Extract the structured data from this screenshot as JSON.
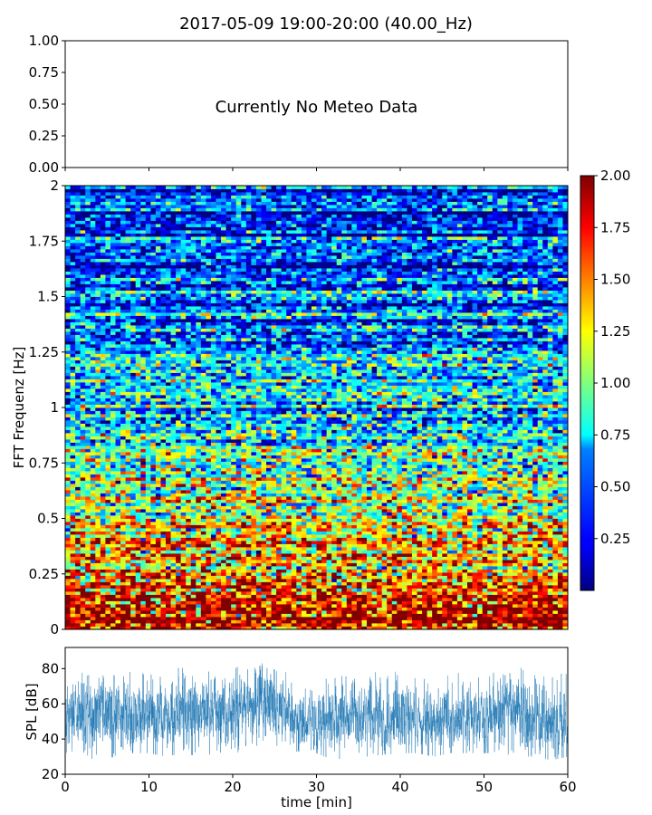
{
  "title": "2017-05-09 19:00-20:00 (40.00_Hz)",
  "meteo_message": "Currently No Meteo Data",
  "chart_data": [
    {
      "type": "line",
      "panel": "meteo",
      "ylim": [
        0.0,
        1.0
      ],
      "yticks": [
        "0.00",
        "0.25",
        "0.50",
        "0.75",
        "1.00"
      ],
      "series": []
    },
    {
      "type": "heatmap",
      "panel": "spectrogram",
      "ylabel": "FFT Frequenz [Hz]",
      "xlim": [
        0,
        60
      ],
      "ylim": [
        0,
        2
      ],
      "yticks": [
        "0",
        "0.25",
        "0.5",
        "0.75",
        "1",
        "1.25",
        "1.5",
        "1.75",
        "2"
      ],
      "colormap": "jet",
      "colorbar": {
        "range": [
          0.0,
          2.0
        ],
        "ticks": [
          "0.25",
          "0.50",
          "0.75",
          "1.00",
          "1.25",
          "1.50",
          "1.75",
          "2.00"
        ]
      },
      "value_profile": [
        {
          "freq": 0.0,
          "mean": 1.95
        },
        {
          "freq": 0.1,
          "mean": 1.8
        },
        {
          "freq": 0.25,
          "mean": 1.5
        },
        {
          "freq": 0.5,
          "mean": 1.2
        },
        {
          "freq": 0.75,
          "mean": 0.95
        },
        {
          "freq": 1.0,
          "mean": 0.75
        },
        {
          "freq": 1.25,
          "mean": 0.6
        },
        {
          "freq": 1.5,
          "mean": 0.45
        },
        {
          "freq": 1.75,
          "mean": 0.35
        },
        {
          "freq": 2.0,
          "mean": 0.3
        }
      ]
    },
    {
      "type": "line",
      "panel": "spl",
      "xlabel": "time [min]",
      "ylabel": "SPL [dB]",
      "xlim": [
        0,
        60
      ],
      "ylim": [
        20,
        92
      ],
      "xticks": [
        "0",
        "10",
        "20",
        "30",
        "40",
        "50",
        "60"
      ],
      "yticks": [
        "20",
        "40",
        "60",
        "80"
      ],
      "color": "#1f77b4",
      "series": [
        {
          "envelope_per_minute": {
            "x": [
              0,
              2,
              4,
              6,
              8,
              10,
              12,
              14,
              16,
              18,
              20,
              22,
              24,
              26,
              28,
              30,
              32,
              34,
              36,
              38,
              40,
              42,
              44,
              46,
              48,
              50,
              52,
              54,
              56,
              58,
              60
            ],
            "low": [
              32,
              30,
              28,
              30,
              32,
              32,
              30,
              32,
              30,
              32,
              33,
              31,
              30,
              32,
              33,
              32,
              28,
              30,
              30,
              31,
              32,
              32,
              30,
              32,
              32,
              32,
              32,
              30,
              30,
              28,
              30
            ],
            "high": [
              75,
              78,
              82,
              84,
              80,
              78,
              76,
              82,
              80,
              78,
              82,
              80,
              84,
              80,
              74,
              72,
              78,
              76,
              78,
              80,
              82,
              78,
              76,
              78,
              78,
              80,
              78,
              82,
              78,
              76,
              78
            ],
            "mean": [
              52,
              55,
              54,
              56,
              54,
              54,
              52,
              56,
              54,
              55,
              56,
              57,
              60,
              58,
              50,
              48,
              50,
              52,
              52,
              53,
              54,
              52,
              50,
              50,
              52,
              53,
              56,
              56,
              52,
              48,
              50
            ]
          }
        }
      ]
    }
  ]
}
